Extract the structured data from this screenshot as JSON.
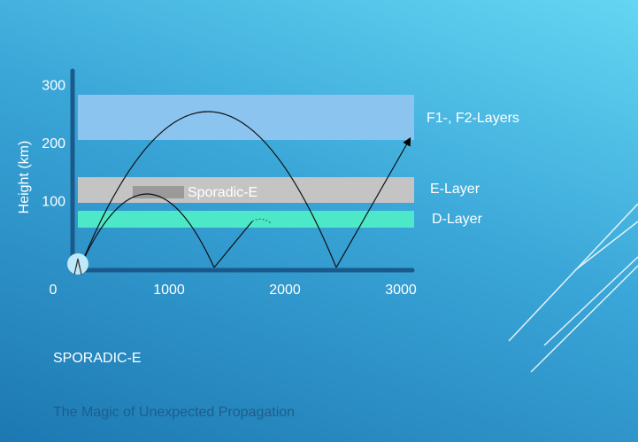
{
  "slide": {
    "title": "SPORADIC-E",
    "subtitle": "The Magic of Unexpected Propagation"
  },
  "diagram": {
    "y_axis_label": "Height (km)",
    "xticks": [
      0,
      1000,
      2000,
      3000
    ],
    "yticks": [
      100,
      200,
      300
    ],
    "layers": [
      "F1-, F2-Layers",
      "E-Layer",
      "D-Layer"
    ],
    "sporadic_label": "Sporadic-E"
  }
}
